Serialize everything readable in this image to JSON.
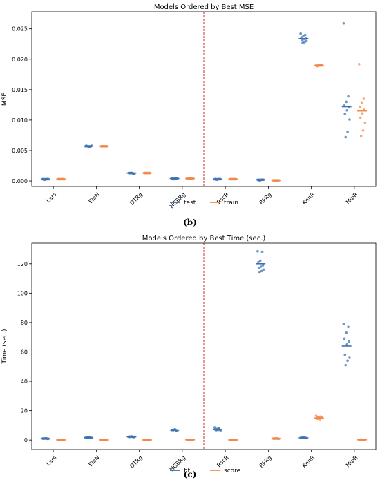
{
  "colors": {
    "series1": "#3f72b0",
    "series2": "#f08a4b",
    "divider": "#d62728",
    "axis": "#000000"
  },
  "figure_captions": [
    "(b)",
    "(c)"
  ],
  "chart_data": [
    {
      "type": "scatter",
      "title": "Models Ordered by Best MSE",
      "xlabel": "",
      "ylabel": "MSE",
      "categories": [
        "Lars",
        "ElaN",
        "DTRg",
        "HGBRg",
        "RscR",
        "RFRg",
        "KnnR",
        "MlpR"
      ],
      "ylim": [
        -0.0009,
        0.0278
      ],
      "yticks": [
        0.0,
        0.005,
        0.01,
        0.015,
        0.02,
        0.025
      ],
      "ytick_labels": [
        "0.000",
        "0.005",
        "0.010",
        "0.015",
        "0.020",
        "0.025"
      ],
      "divider_after": 3,
      "legend": {
        "placement": "bottom-center",
        "entries": [
          "test",
          "train"
        ]
      },
      "grid": false,
      "series": [
        {
          "name": "test",
          "means": [
            0.0003,
            0.0057,
            0.0013,
            0.0004,
            0.0003,
            0.0002,
            0.0234,
            0.0122
          ],
          "points": [
            [
              0.0003,
              0.0003,
              0.0002,
              0.0003,
              0.0003,
              0.0003,
              0.0002,
              0.0003,
              0.0003,
              0.0003
            ],
            [
              0.0057,
              0.0056,
              0.0057,
              0.0058,
              0.0057,
              0.0056,
              0.0057,
              0.0058,
              0.0057,
              0.0057
            ],
            [
              0.0013,
              0.0012,
              0.0013,
              0.0013,
              0.0012,
              0.0013,
              0.0013,
              0.0012,
              0.0013,
              0.0013
            ],
            [
              0.0004,
              0.0004,
              0.0003,
              0.0004,
              0.0004,
              0.0004,
              0.0003,
              0.0004,
              0.0004,
              0.0004
            ],
            [
              0.0003,
              0.0003,
              0.0002,
              0.0003,
              0.0003,
              0.0003,
              0.0002,
              0.0003,
              0.0003,
              0.0003
            ],
            [
              0.0002,
              0.0002,
              0.0001,
              0.0002,
              0.0002,
              0.0002,
              0.0001,
              0.0002,
              0.0002,
              0.0002
            ],
            [
              0.0242,
              0.024,
              0.0238,
              0.0236,
              0.0234,
              0.0233,
              0.0232,
              0.023,
              0.0228,
              0.0227
            ],
            [
              0.0259,
              0.0139,
              0.013,
              0.0124,
              0.0121,
              0.0116,
              0.011,
              0.0101,
              0.0081,
              0.0072
            ]
          ]
        },
        {
          "name": "train",
          "means": [
            0.0003,
            0.0057,
            0.0013,
            0.0004,
            0.0003,
            0.0001,
            0.019,
            0.0115
          ],
          "points": [
            [
              0.0003,
              0.0003,
              0.0003,
              0.0003,
              0.0003,
              0.0003,
              0.0003,
              0.0003,
              0.0003,
              0.0003
            ],
            [
              0.0057,
              0.0057,
              0.0057,
              0.0057,
              0.0057,
              0.0057,
              0.0057,
              0.0057,
              0.0057,
              0.0057
            ],
            [
              0.0013,
              0.0013,
              0.0013,
              0.0013,
              0.0013,
              0.0013,
              0.0013,
              0.0013,
              0.0013,
              0.0013
            ],
            [
              0.0004,
              0.0004,
              0.0004,
              0.0004,
              0.0004,
              0.0004,
              0.0004,
              0.0004,
              0.0004,
              0.0004
            ],
            [
              0.0003,
              0.0003,
              0.0003,
              0.0003,
              0.0003,
              0.0003,
              0.0003,
              0.0003,
              0.0003,
              0.0003
            ],
            [
              0.0001,
              0.0001,
              0.0001,
              0.0001,
              0.0001,
              0.0001,
              0.0001,
              0.0001,
              0.0001,
              0.0001
            ],
            [
              0.019,
              0.019,
              0.019,
              0.0189,
              0.019,
              0.019,
              0.0189,
              0.019,
              0.019,
              0.019
            ],
            [
              0.0192,
              0.0135,
              0.0129,
              0.0122,
              0.0117,
              0.0111,
              0.0104,
              0.0096,
              0.0083,
              0.0074
            ]
          ]
        }
      ]
    },
    {
      "type": "scatter",
      "title": "Models Ordered by Best Time (sec.)",
      "xlabel": "",
      "ylabel": "Time (sec.)",
      "categories": [
        "Lars",
        "ElaN",
        "DTRg",
        "HGBRg",
        "RscR",
        "RFRg",
        "KnnR",
        "MlpR"
      ],
      "ylim": [
        -6.5,
        134
      ],
      "yticks": [
        0,
        20,
        40,
        60,
        80,
        100,
        120
      ],
      "ytick_labels": [
        "0",
        "20",
        "40",
        "60",
        "80",
        "100",
        "120"
      ],
      "divider_after": 3,
      "legend": {
        "placement": "bottom-center",
        "entries": [
          "fit",
          "score"
        ]
      },
      "grid": false,
      "series": [
        {
          "name": "fit",
          "means": [
            1.0,
            1.6,
            2.2,
            6.8,
            7.2,
            120.0,
            1.5,
            64.0
          ],
          "points": [
            [
              1.0,
              0.9,
              1.1,
              1.0,
              0.8,
              1.2,
              1.0,
              0.9,
              1.1,
              1.0
            ],
            [
              1.6,
              1.5,
              1.7,
              1.6,
              1.4,
              1.8,
              1.6,
              1.5,
              1.7,
              1.6
            ],
            [
              2.2,
              2.1,
              2.3,
              2.2,
              2.0,
              2.4,
              2.2,
              2.1,
              2.3,
              2.2
            ],
            [
              6.8,
              6.5,
              7.0,
              6.8,
              6.3,
              7.2,
              6.8,
              6.6,
              7.0,
              6.7
            ],
            [
              8.5,
              8.0,
              7.6,
              7.2,
              7.0,
              6.8,
              6.6,
              6.4,
              7.4,
              7.1
            ],
            [
              128.5,
              128.0,
              122.0,
              121.0,
              119.0,
              118.0,
              117.0,
              116.0,
              115.0,
              114.0
            ],
            [
              1.5,
              1.4,
              1.6,
              1.5,
              1.3,
              1.7,
              1.5,
              1.4,
              1.6,
              1.5
            ],
            [
              79.0,
              77.0,
              73.0,
              69.0,
              67.0,
              65.0,
              58.0,
              56.0,
              54.0,
              51.0
            ]
          ]
        },
        {
          "name": "score",
          "means": [
            0.1,
            0.1,
            0.1,
            0.2,
            0.1,
            1.0,
            15.0,
            0.2
          ],
          "points": [
            [
              0.1,
              0.1,
              0.1,
              0.1,
              0.1,
              0.1,
              0.1,
              0.1,
              0.1,
              0.1
            ],
            [
              0.1,
              0.1,
              0.1,
              0.1,
              0.1,
              0.1,
              0.1,
              0.1,
              0.1,
              0.1
            ],
            [
              0.1,
              0.1,
              0.1,
              0.1,
              0.1,
              0.1,
              0.1,
              0.1,
              0.1,
              0.1
            ],
            [
              0.2,
              0.2,
              0.2,
              0.2,
              0.2,
              0.2,
              0.2,
              0.2,
              0.2,
              0.2
            ],
            [
              0.1,
              0.1,
              0.1,
              0.1,
              0.1,
              0.1,
              0.1,
              0.1,
              0.1,
              0.1
            ],
            [
              1.0,
              0.9,
              1.1,
              1.0,
              0.8,
              1.2,
              1.0,
              0.9,
              1.1,
              1.0
            ],
            [
              16.5,
              16.0,
              15.5,
              15.2,
              15.0,
              14.8,
              14.5,
              15.3,
              14.2,
              15.8
            ],
            [
              0.2,
              0.2,
              0.3,
              0.2,
              0.1,
              0.2,
              0.3,
              0.2,
              0.1,
              0.2
            ]
          ]
        }
      ]
    }
  ]
}
